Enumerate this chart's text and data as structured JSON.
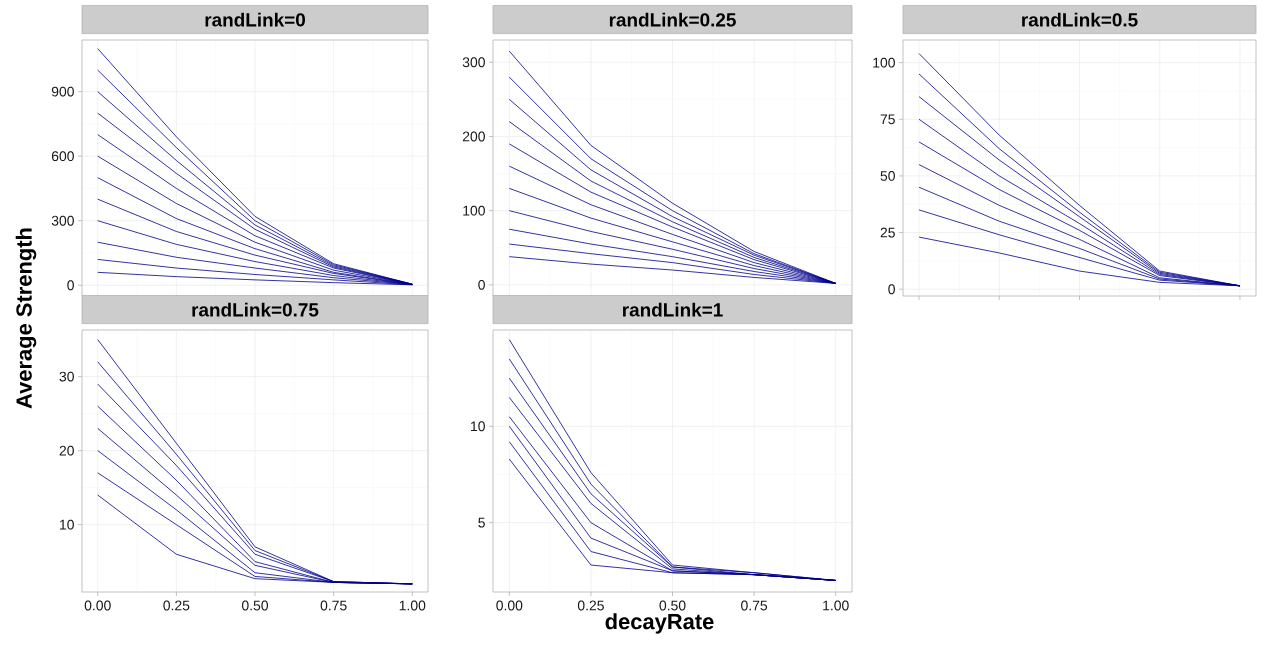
{
  "chart_data": [
    {
      "type": "line",
      "title": "randLink=0",
      "x": [
        0,
        0.25,
        0.5,
        0.75,
        1
      ],
      "xlim": [
        -0.05,
        1.05
      ],
      "xticks": [
        {
          "value": 0,
          "label": null
        },
        {
          "value": 0.25,
          "label": null
        },
        {
          "value": 0.5,
          "label": null
        },
        {
          "value": 0.75,
          "label": null
        },
        {
          "value": 1,
          "label": null
        }
      ],
      "ylim": [
        -50,
        1140
      ],
      "yticks": [
        0,
        300,
        600,
        900
      ],
      "grid": true,
      "tick_labels": "y",
      "series": [
        {
          "color": "#00008b",
          "values": [
            1100,
            690,
            320,
            100,
            5
          ]
        },
        {
          "color": "#00008b",
          "values": [
            1000,
            640,
            300,
            95,
            5
          ]
        },
        {
          "color": "#00008b",
          "values": [
            900,
            580,
            280,
            90,
            5
          ]
        },
        {
          "color": "#00008b",
          "values": [
            800,
            520,
            260,
            85,
            4
          ]
        },
        {
          "color": "#00008b",
          "values": [
            700,
            450,
            230,
            80,
            4
          ]
        },
        {
          "color": "#00008b",
          "values": [
            600,
            380,
            200,
            70,
            4
          ]
        },
        {
          "color": "#00008b",
          "values": [
            500,
            310,
            170,
            60,
            4
          ]
        },
        {
          "color": "#00008b",
          "values": [
            400,
            250,
            140,
            55,
            3
          ]
        },
        {
          "color": "#00008b",
          "values": [
            300,
            190,
            110,
            45,
            3
          ]
        },
        {
          "color": "#00008b",
          "values": [
            200,
            130,
            80,
            35,
            3
          ]
        },
        {
          "color": "#00008b",
          "values": [
            120,
            80,
            50,
            25,
            2
          ]
        },
        {
          "color": "#00008b",
          "values": [
            60,
            40,
            25,
            12,
            2
          ]
        }
      ]
    },
    {
      "type": "line",
      "title": "randLink=0.25",
      "x": [
        0,
        0.25,
        0.5,
        0.75,
        1
      ],
      "xlim": [
        -0.05,
        1.05
      ],
      "xticks": [
        {
          "value": 0,
          "label": null
        },
        {
          "value": 0.25,
          "label": null
        },
        {
          "value": 0.5,
          "label": null
        },
        {
          "value": 0.75,
          "label": null
        },
        {
          "value": 1,
          "label": null
        }
      ],
      "ylim": [
        -15,
        330
      ],
      "yticks": [
        0,
        100,
        200,
        300
      ],
      "grid": true,
      "tick_labels": "y",
      "series": [
        {
          "color": "#00008b",
          "values": [
            315,
            188,
            110,
            45,
            2
          ]
        },
        {
          "color": "#00008b",
          "values": [
            280,
            170,
            100,
            42,
            2
          ]
        },
        {
          "color": "#00008b",
          "values": [
            250,
            155,
            92,
            40,
            2
          ]
        },
        {
          "color": "#00008b",
          "values": [
            220,
            140,
            85,
            37,
            2
          ]
        },
        {
          "color": "#00008b",
          "values": [
            190,
            125,
            78,
            34,
            2
          ]
        },
        {
          "color": "#00008b",
          "values": [
            160,
            108,
            68,
            30,
            2
          ]
        },
        {
          "color": "#00008b",
          "values": [
            130,
            90,
            58,
            26,
            2
          ]
        },
        {
          "color": "#00008b",
          "values": [
            100,
            72,
            48,
            22,
            2
          ]
        },
        {
          "color": "#00008b",
          "values": [
            75,
            55,
            38,
            18,
            2
          ]
        },
        {
          "color": "#00008b",
          "values": [
            55,
            42,
            30,
            14,
            2
          ]
        },
        {
          "color": "#00008b",
          "values": [
            38,
            28,
            20,
            10,
            2
          ]
        }
      ]
    },
    {
      "type": "line",
      "title": "randLink=0.5",
      "categories": [
        null,
        null,
        null,
        null,
        null
      ],
      "ylim": [
        -3,
        110
      ],
      "yticks": [
        0,
        25,
        50,
        75,
        100
      ],
      "grid": true,
      "tick_labels": "y",
      "series": [
        {
          "color": "#00008b",
          "values": [
            104,
            68,
            37,
            8,
            1.5
          ]
        },
        {
          "color": "#00008b",
          "values": [
            95,
            62,
            34,
            7.5,
            1.5
          ]
        },
        {
          "color": "#00008b",
          "values": [
            85,
            57,
            32,
            7,
            1.5
          ]
        },
        {
          "color": "#00008b",
          "values": [
            75,
            50,
            29,
            6.5,
            1.5
          ]
        },
        {
          "color": "#00008b",
          "values": [
            65,
            44,
            26,
            6,
            1.5
          ]
        },
        {
          "color": "#00008b",
          "values": [
            55,
            37,
            22,
            5,
            1.5
          ]
        },
        {
          "color": "#00008b",
          "values": [
            45,
            30,
            18,
            4.5,
            1.5
          ]
        },
        {
          "color": "#00008b",
          "values": [
            35,
            24,
            14,
            4,
            1.5
          ]
        },
        {
          "color": "#00008b",
          "values": [
            23,
            16,
            8,
            3,
            1.5
          ]
        }
      ]
    },
    {
      "type": "line",
      "title": "randLink=0.75",
      "ylabel": "Average Strength",
      "x": [
        0,
        0.25,
        0.5,
        0.75,
        1
      ],
      "xlim": [
        -0.05,
        1.05
      ],
      "xticks": [
        {
          "value": 0,
          "label": "0.00"
        },
        {
          "value": 0.25,
          "label": "0.25"
        },
        {
          "value": 0.5,
          "label": "0.50"
        },
        {
          "value": 0.75,
          "label": "0.75"
        },
        {
          "value": 1,
          "label": "1.00"
        }
      ],
      "ylim": [
        0.9,
        36.3
      ],
      "yticks": [
        10,
        20,
        30
      ],
      "grid": true,
      "series": [
        {
          "color": "#00008b",
          "values": [
            35,
            21,
            7,
            2.3,
            2
          ]
        },
        {
          "color": "#00008b",
          "values": [
            32,
            19.5,
            6.5,
            2.3,
            2
          ]
        },
        {
          "color": "#00008b",
          "values": [
            29,
            18,
            6,
            2.3,
            2
          ]
        },
        {
          "color": "#00008b",
          "values": [
            26,
            16,
            5,
            2.2,
            2
          ]
        },
        {
          "color": "#00008b",
          "values": [
            23,
            14,
            4.5,
            2.2,
            2
          ]
        },
        {
          "color": "#00008b",
          "values": [
            20,
            12,
            3.5,
            2.2,
            2
          ]
        },
        {
          "color": "#00008b",
          "values": [
            17,
            10,
            3,
            2.2,
            2
          ]
        },
        {
          "color": "#00008b",
          "values": [
            14,
            6,
            2.7,
            2.2,
            2
          ]
        }
      ]
    },
    {
      "type": "line",
      "title": "randLink=1",
      "xlabel": "decayRate",
      "x": [
        0,
        0.25,
        0.5,
        0.75,
        1
      ],
      "xlim": [
        -0.05,
        1.05
      ],
      "xticks": [
        {
          "value": 0,
          "label": "0.00"
        },
        {
          "value": 0.25,
          "label": "0.25"
        },
        {
          "value": 0.5,
          "label": "0.50"
        },
        {
          "value": 0.75,
          "label": "0.75"
        },
        {
          "value": 1,
          "label": "1.00"
        }
      ],
      "ylim": [
        1.4,
        15
      ],
      "yticks": [
        5,
        10
      ],
      "grid": true,
      "series": [
        {
          "color": "#00008b",
          "values": [
            14.5,
            7.6,
            2.8,
            2.4,
            2
          ]
        },
        {
          "color": "#00008b",
          "values": [
            13.5,
            7,
            2.7,
            2.4,
            2
          ]
        },
        {
          "color": "#00008b",
          "values": [
            12.5,
            6.5,
            2.7,
            2.3,
            2
          ]
        },
        {
          "color": "#00008b",
          "values": [
            11.5,
            6,
            2.6,
            2.3,
            2
          ]
        },
        {
          "color": "#00008b",
          "values": [
            10.5,
            5,
            2.5,
            2.3,
            2
          ]
        },
        {
          "color": "#00008b",
          "values": [
            10,
            4.2,
            2.5,
            2.3,
            2
          ]
        },
        {
          "color": "#00008b",
          "values": [
            9.2,
            3.5,
            2.4,
            2.3,
            2
          ]
        },
        {
          "color": "#00008b",
          "values": [
            8.3,
            2.8,
            2.4,
            2.3,
            2
          ]
        }
      ]
    }
  ]
}
